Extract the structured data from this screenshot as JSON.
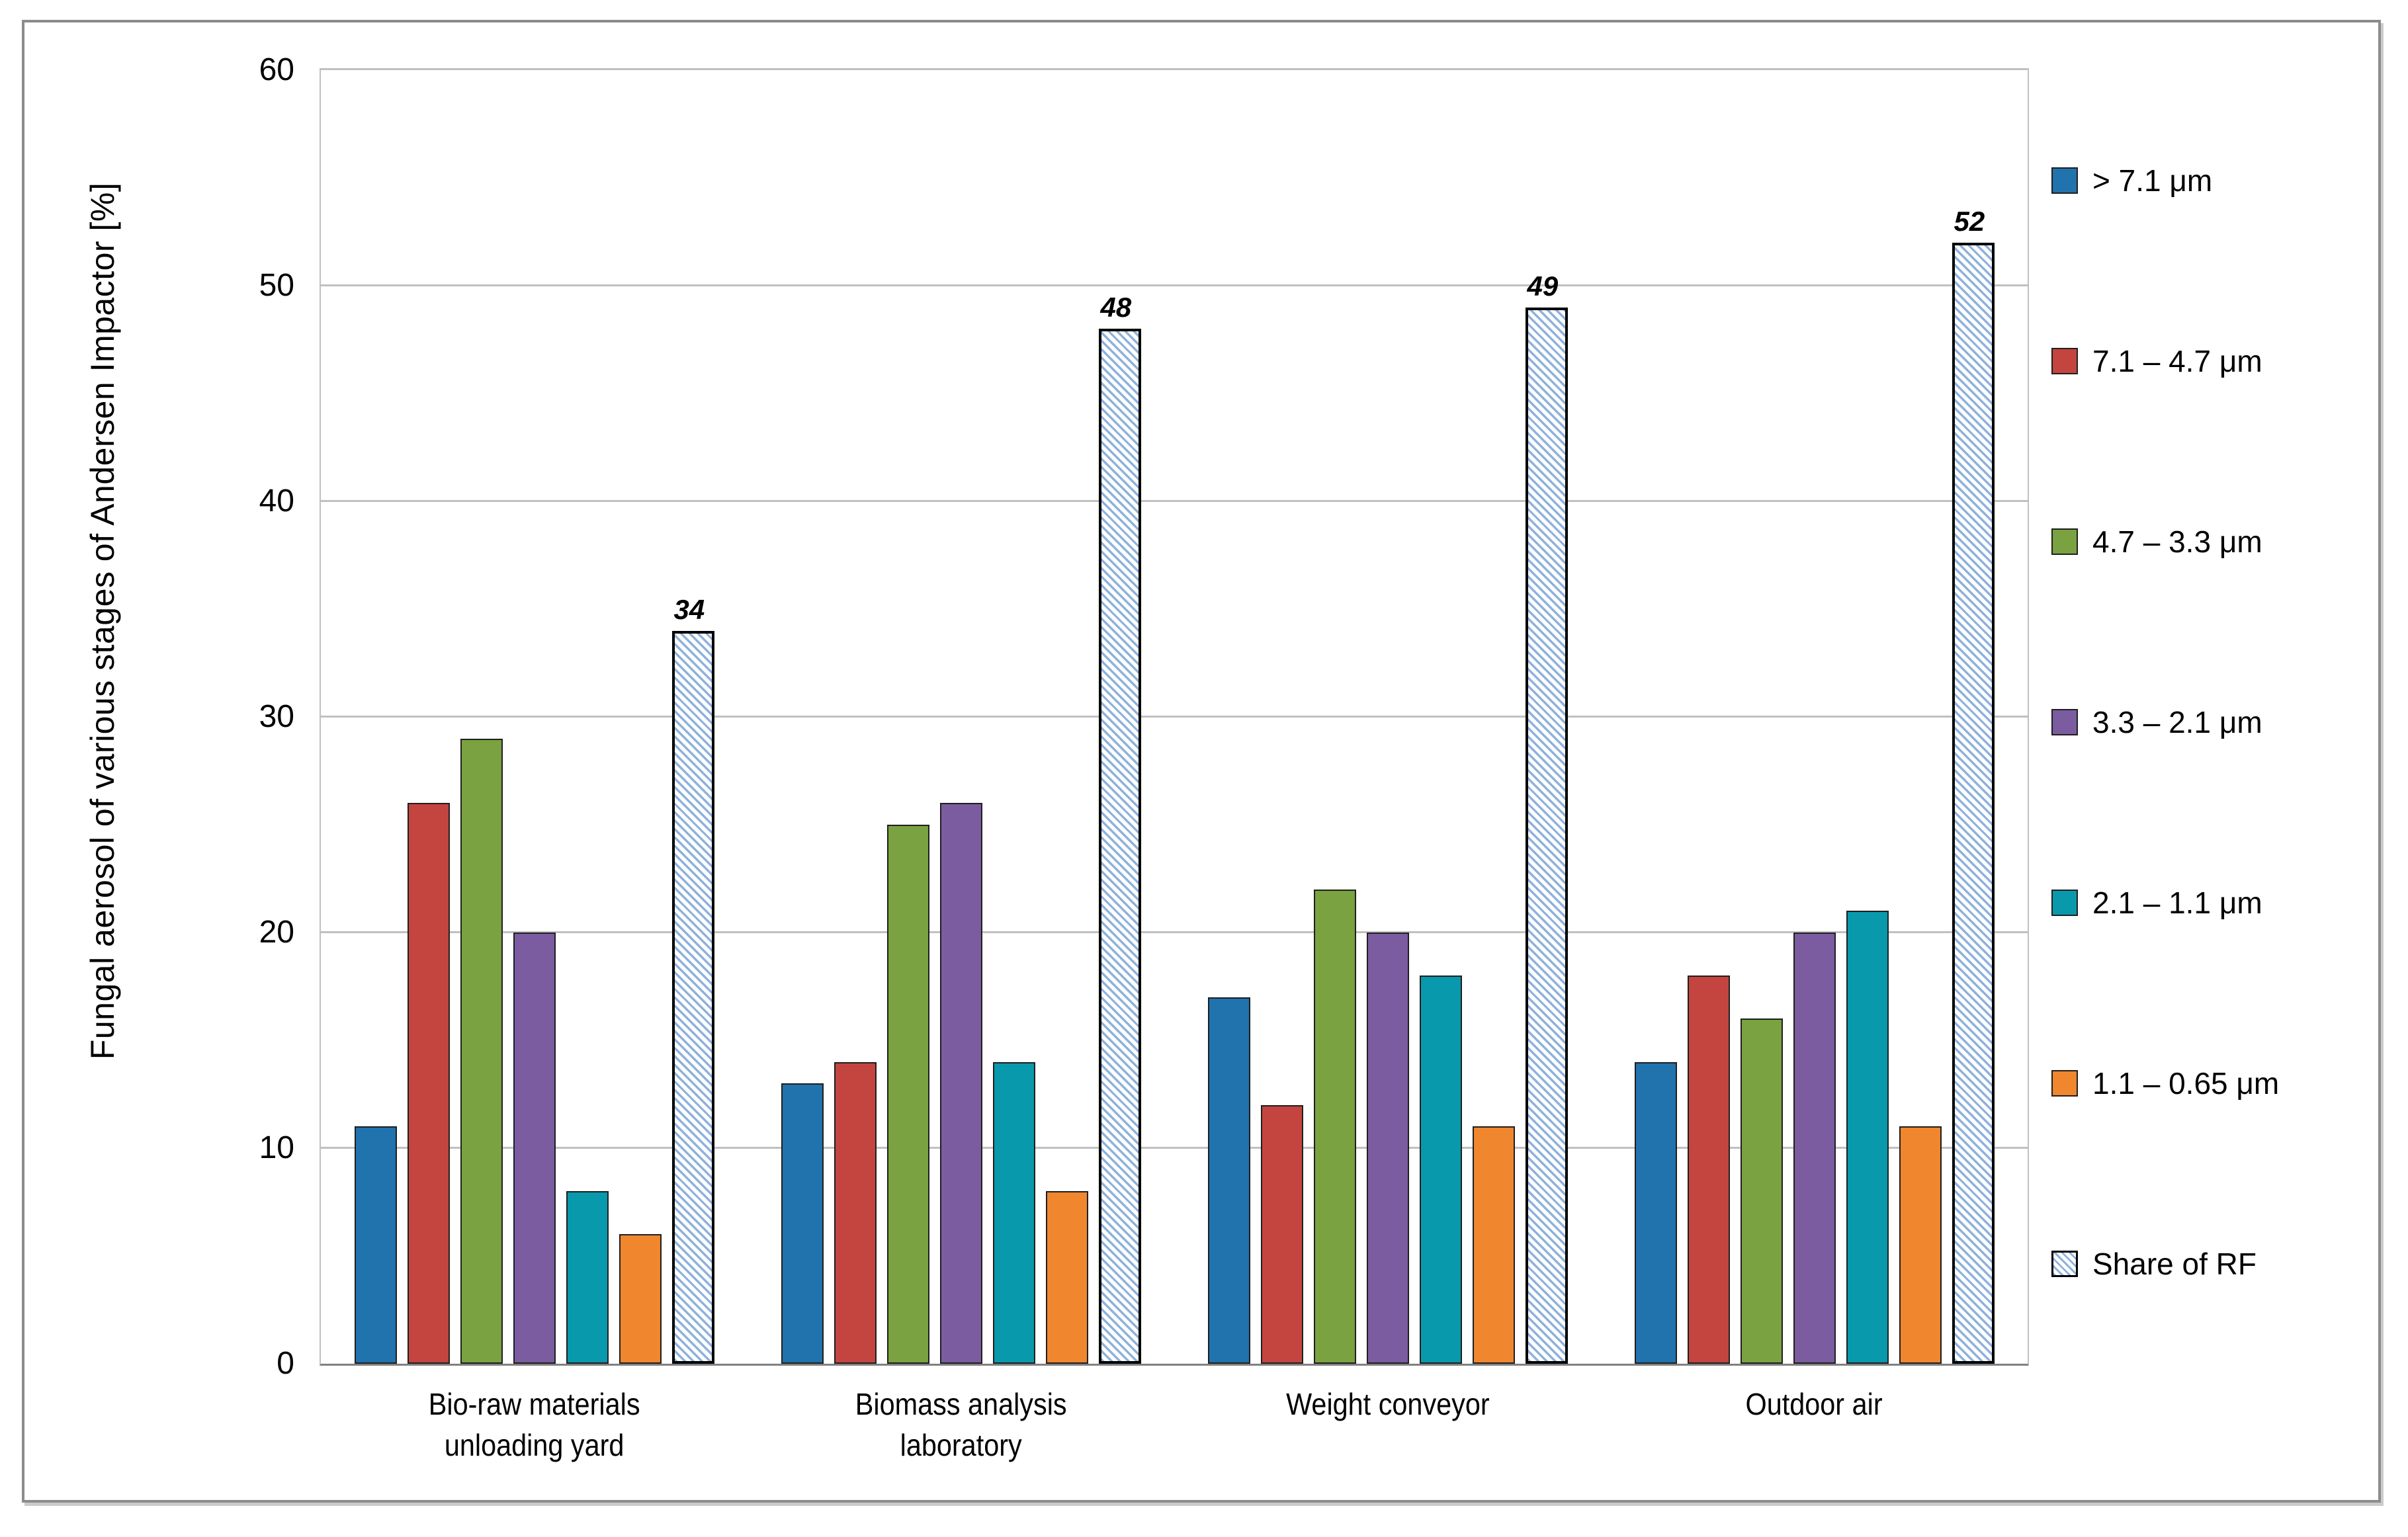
{
  "chart_data": {
    "type": "bar",
    "title": "",
    "ylabel": "Fungal aerosol of various stages of Andersen Impactor [%]",
    "ylim": [
      0,
      60
    ],
    "yticks": [
      0,
      10,
      20,
      30,
      40,
      50,
      60
    ],
    "grid": "horizontal",
    "legend_position": "right",
    "categories": [
      "Bio-raw materials\nunloading yard",
      "Biomass analysis\nlaboratory",
      "Weight conveyor",
      "Outdoor air"
    ],
    "series": [
      {
        "name": "> 7.1 μm",
        "color": "#2173ae",
        "values": [
          11,
          13,
          17,
          14
        ]
      },
      {
        "name": "7.1 – 4.7 μm",
        "color": "#c4453f",
        "values": [
          26,
          14,
          12,
          18
        ]
      },
      {
        "name": "4.7 – 3.3 μm",
        "color": "#7aa240",
        "values": [
          29,
          25,
          22,
          16
        ]
      },
      {
        "name": "3.3 – 2.1 μm",
        "color": "#7b5ca0",
        "values": [
          20,
          26,
          20,
          20
        ]
      },
      {
        "name": "2.1 – 1.1  μm",
        "color": "#0999ac",
        "values": [
          8,
          14,
          18,
          21
        ]
      },
      {
        "name": "1.1 – 0.65  μm",
        "color": "#f0862e",
        "values": [
          6,
          8,
          11,
          11
        ]
      },
      {
        "name": "Share of RF",
        "hatched": true,
        "stripe_color": "#8fb2dc",
        "values": [
          34,
          48,
          49,
          52
        ],
        "data_labels": [
          "34",
          "48",
          "49",
          "52"
        ]
      }
    ]
  }
}
